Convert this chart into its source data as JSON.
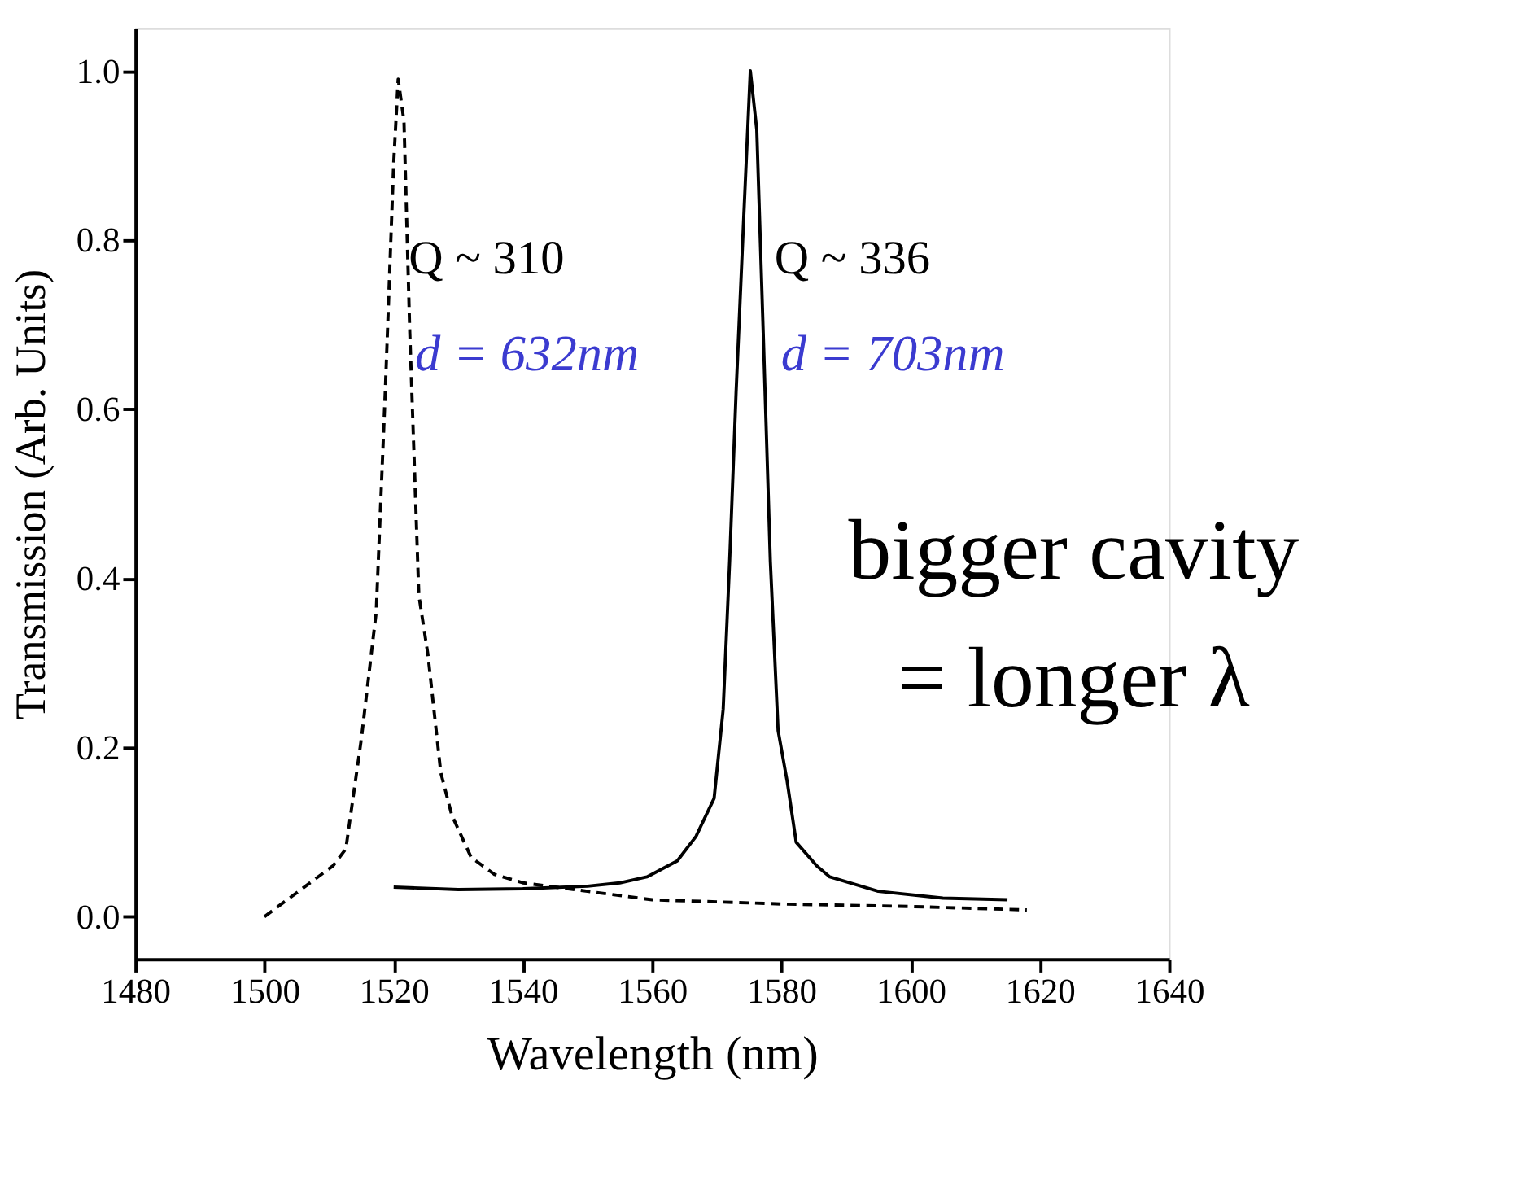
{
  "chart_data": {
    "type": "line",
    "xlabel": "Wavelength (nm)",
    "ylabel": "Transmission (Arb. Units)",
    "xlim": [
      1480,
      1640
    ],
    "xticks": [
      1480,
      1500,
      1520,
      1540,
      1560,
      1580,
      1600,
      1620,
      1640
    ],
    "ylim": [
      -0.05,
      1.05
    ],
    "yticks": [
      {
        "value": 0,
        "label": "0.0"
      },
      0.2,
      0.4,
      0.6,
      0.8,
      {
        "value": 1,
        "label": "1.0"
      }
    ],
    "grid": false,
    "marker": "none",
    "series": [
      {
        "color": "#000000",
        "line_style": "dashed",
        "x": [
          1500,
          1510.6,
          1512.6,
          1515,
          1517.3,
          1518.7,
          1520,
          1520.7,
          1521.6,
          1522.5,
          1523.9,
          1525.3,
          1527.3,
          1529,
          1532,
          1535.6,
          1540,
          1550,
          1560,
          1580,
          1600,
          1618
        ],
        "values": [
          0.0,
          0.06,
          0.08,
          0.21,
          0.36,
          0.62,
          0.89,
          0.99,
          0.94,
          0.69,
          0.38,
          0.31,
          0.17,
          0.12,
          0.07,
          0.05,
          0.04,
          0.03,
          0.02,
          0.015,
          0.012,
          0.008
        ]
      },
      {
        "color": "#000000",
        "line_style": "solid",
        "x": [
          1520,
          1530,
          1540,
          1550,
          1555,
          1559.2,
          1563.9,
          1566.8,
          1569.6,
          1571,
          1572,
          1573,
          1574.2,
          1575.2,
          1576.2,
          1577.2,
          1578.3,
          1579.5,
          1580.9,
          1582.3,
          1585.5,
          1587.5,
          1595,
          1605,
          1615
        ],
        "values": [
          0.035,
          0.032,
          0.033,
          0.036,
          0.04,
          0.047,
          0.066,
          0.095,
          0.14,
          0.245,
          0.42,
          0.62,
          0.83,
          1.0,
          0.93,
          0.69,
          0.42,
          0.22,
          0.16,
          0.088,
          0.06,
          0.047,
          0.03,
          0.022,
          0.02
        ]
      }
    ],
    "annotations": [
      "Q ~ 310",
      "d = 632nm",
      "Q ~ 336",
      "d = 703nm",
      "bigger cavity",
      "= longer λ"
    ]
  }
}
